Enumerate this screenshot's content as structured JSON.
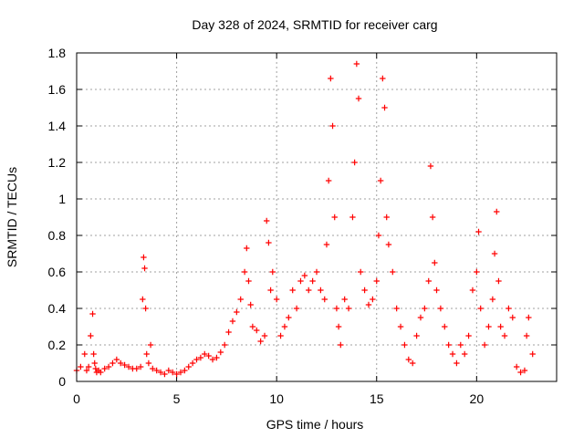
{
  "chart_data": {
    "type": "scatter",
    "title": "Day 328 of 2024, SRMTID for receiver carg",
    "xlabel": "GPS time / hours",
    "ylabel": "SRMTID / TECUs",
    "xlim": [
      0,
      24
    ],
    "ylim": [
      0,
      1.8
    ],
    "xticks": [
      0,
      5,
      10,
      15,
      20
    ],
    "xtick_labels": [
      "0",
      "5",
      "10",
      "15",
      "20"
    ],
    "yticks": [
      0,
      0.2,
      0.4,
      0.6,
      0.8,
      1.0,
      1.2,
      1.4,
      1.6,
      1.8
    ],
    "ytick_labels": [
      "0",
      "0.2",
      "0.4",
      "0.6",
      "0.8",
      "1",
      "1.2",
      "1.4",
      "1.6",
      "1.8"
    ],
    "grid": true,
    "marker": "+",
    "color": "#ff0000",
    "series": [
      {
        "name": "SRMTID",
        "x": [
          0.0,
          0.2,
          0.4,
          0.5,
          0.6,
          0.7,
          0.8,
          0.85,
          0.9,
          0.95,
          1.0,
          1.1,
          1.2,
          1.4,
          1.6,
          1.8,
          2.0,
          2.2,
          2.4,
          2.6,
          2.8,
          3.0,
          3.2,
          3.3,
          3.35,
          3.4,
          3.45,
          3.5,
          3.6,
          3.7,
          3.8,
          4.0,
          4.2,
          4.4,
          4.6,
          4.8,
          5.0,
          5.2,
          5.4,
          5.6,
          5.8,
          6.0,
          6.2,
          6.4,
          6.6,
          6.8,
          7.0,
          7.2,
          7.4,
          7.6,
          7.8,
          8.0,
          8.2,
          8.4,
          8.5,
          8.6,
          8.7,
          8.8,
          9.0,
          9.2,
          9.4,
          9.5,
          9.6,
          9.7,
          9.8,
          10.0,
          10.2,
          10.4,
          10.6,
          10.8,
          11.0,
          11.2,
          11.4,
          11.6,
          11.8,
          12.0,
          12.2,
          12.4,
          12.5,
          12.6,
          12.7,
          12.8,
          12.9,
          13.0,
          13.1,
          13.2,
          13.4,
          13.6,
          13.8,
          13.9,
          14.0,
          14.1,
          14.2,
          14.4,
          14.6,
          14.8,
          15.0,
          15.1,
          15.2,
          15.3,
          15.4,
          15.5,
          15.6,
          15.8,
          16.0,
          16.2,
          16.4,
          16.6,
          16.8,
          17.0,
          17.2,
          17.4,
          17.6,
          17.7,
          17.8,
          17.9,
          18.0,
          18.2,
          18.4,
          18.6,
          18.8,
          19.0,
          19.2,
          19.4,
          19.6,
          19.8,
          20.0,
          20.1,
          20.2,
          20.4,
          20.6,
          20.8,
          20.9,
          21.0,
          21.1,
          21.2,
          21.4,
          21.6,
          21.8,
          22.0,
          22.2,
          22.4,
          22.5,
          22.6,
          22.8
        ],
        "y": [
          0.06,
          0.08,
          0.15,
          0.06,
          0.08,
          0.25,
          0.37,
          0.15,
          0.1,
          0.07,
          0.05,
          0.06,
          0.05,
          0.07,
          0.08,
          0.1,
          0.12,
          0.1,
          0.09,
          0.08,
          0.07,
          0.07,
          0.08,
          0.45,
          0.68,
          0.62,
          0.4,
          0.15,
          0.1,
          0.2,
          0.07,
          0.06,
          0.05,
          0.04,
          0.06,
          0.05,
          0.04,
          0.05,
          0.06,
          0.08,
          0.1,
          0.12,
          0.13,
          0.15,
          0.14,
          0.12,
          0.13,
          0.16,
          0.2,
          0.27,
          0.33,
          0.38,
          0.45,
          0.6,
          0.73,
          0.55,
          0.42,
          0.3,
          0.28,
          0.22,
          0.25,
          0.88,
          0.76,
          0.5,
          0.6,
          0.45,
          0.25,
          0.3,
          0.35,
          0.5,
          0.4,
          0.55,
          0.58,
          0.5,
          0.55,
          0.6,
          0.5,
          0.45,
          0.75,
          1.1,
          1.66,
          1.4,
          0.9,
          0.4,
          0.3,
          0.2,
          0.45,
          0.4,
          0.9,
          1.2,
          1.74,
          1.55,
          0.6,
          0.5,
          0.42,
          0.45,
          0.55,
          0.8,
          1.1,
          1.66,
          1.5,
          0.9,
          0.75,
          0.6,
          0.4,
          0.3,
          0.2,
          0.12,
          0.1,
          0.25,
          0.35,
          0.4,
          0.55,
          1.18,
          0.9,
          0.65,
          0.5,
          0.4,
          0.3,
          0.2,
          0.15,
          0.1,
          0.2,
          0.15,
          0.25,
          0.5,
          0.6,
          0.82,
          0.4,
          0.2,
          0.3,
          0.45,
          0.7,
          0.93,
          0.55,
          0.3,
          0.25,
          0.4,
          0.35,
          0.08,
          0.05,
          0.06,
          0.25,
          0.35,
          0.15
        ]
      }
    ]
  }
}
